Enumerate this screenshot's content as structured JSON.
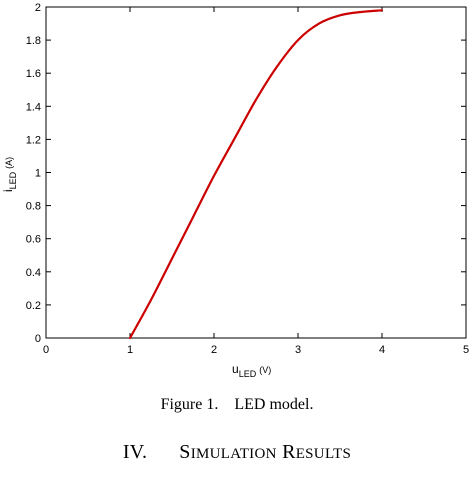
{
  "chart_data": {
    "type": "line",
    "xlim": [
      0,
      5
    ],
    "ylim": [
      0,
      2
    ],
    "x_ticks": [
      0,
      1,
      2,
      3,
      4,
      5
    ],
    "y_ticks": [
      0,
      0.2,
      0.4,
      0.6,
      0.8,
      1,
      1.2,
      1.4,
      1.6,
      1.8,
      2
    ],
    "y_tick_labels": [
      "0",
      "0.2",
      "0.4",
      "0.6",
      "0.8",
      "1",
      "1.2",
      "1.4",
      "1.6",
      "1.8",
      "2"
    ],
    "xlabel": {
      "main": "u",
      "sub": "LED",
      "unit": "(V)"
    },
    "ylabel": {
      "main": "i",
      "sub": "LED",
      "unit": "(A)"
    },
    "grid": false,
    "series": [
      {
        "color": "#cc0000",
        "x": [
          1.0,
          1.25,
          1.5,
          1.75,
          2.0,
          2.25,
          2.5,
          2.75,
          3.0,
          3.25,
          3.5,
          3.75,
          4.0
        ],
        "y": [
          0.0,
          0.23,
          0.48,
          0.73,
          0.98,
          1.21,
          1.44,
          1.64,
          1.8,
          1.9,
          1.95,
          1.97,
          1.98
        ]
      }
    ]
  },
  "caption": {
    "figure_label": "Figure 1.",
    "figure_text": "LED model."
  },
  "section": {
    "number": "IV.",
    "title_s": "S",
    "title_imulation": "IMULATION",
    "title_r": "R",
    "title_esults": "ESULTS"
  }
}
